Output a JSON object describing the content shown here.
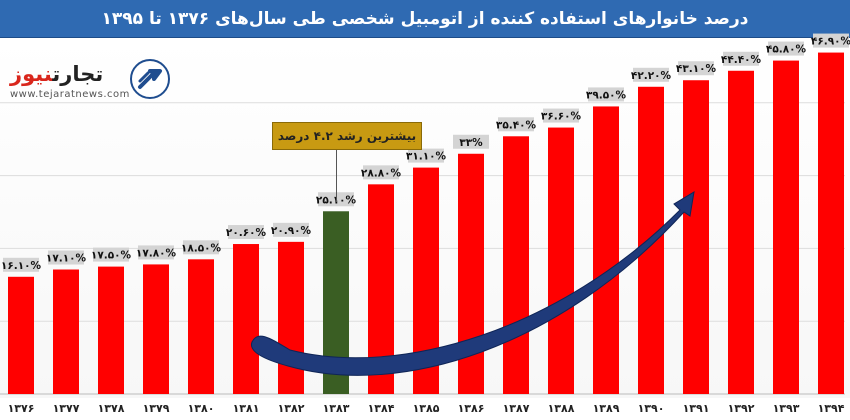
{
  "header": {
    "title": "درصد خانوارهای استفاده کننده از اتومبیل شخصی طی سال‌های ۱۳۷۶ تا ۱۳۹۵"
  },
  "logo": {
    "name_part1": "تجارت",
    "name_part2": "نیوز",
    "site": "www.tejaratnews.com",
    "icon": "tejaratnews-logo-icon"
  },
  "annotation": {
    "text": "بیشترین رشد ۴.۲ درصد",
    "category": "۱۳۸۳"
  },
  "colors": {
    "header_bg": "#2f6ab2",
    "bar": "#ff0000",
    "bar_highlight": "#3a5e23",
    "label_bg": "#d4d4d4",
    "arrow": "#1f3a7a",
    "annotation_bg": "#c89a12"
  },
  "chart_data": {
    "type": "bar",
    "title": "درصد خانوارهای استفاده کننده از اتومبیل شخصی طی سال‌های ۱۳۷۶ تا ۱۳۹۵",
    "categories": [
      "۱۳۷۶",
      "۱۳۷۷",
      "۱۳۷۸",
      "۱۳۷۹",
      "۱۳۸۰",
      "۱۳۸۱",
      "۱۳۸۲",
      "۱۳۸۳",
      "۱۳۸۴",
      "۱۳۸۵",
      "۱۳۸۶",
      "۱۳۸۷",
      "۱۳۸۸",
      "۱۳۸۹",
      "۱۳۹۰",
      "۱۳۹۱",
      "۱۳۹۲",
      "۱۳۹۳",
      "۱۳۹۴"
    ],
    "values": [
      16.1,
      17.1,
      17.5,
      17.8,
      18.5,
      20.6,
      20.9,
      25.1,
      28.8,
      31.1,
      33,
      35.4,
      36.6,
      39.5,
      42.2,
      43.1,
      44.4,
      45.8,
      46.9
    ],
    "value_labels": [
      "۱۶.۱۰%",
      "۱۷.۱۰%",
      "۱۷.۵۰%",
      "۱۷.۸۰%",
      "۱۸.۵۰%",
      "۲۰.۶۰%",
      "۲۰.۹۰%",
      "۲۵.۱۰%",
      "۲۸.۸۰%",
      "۳۱.۱۰%",
      "۳۳%",
      "۳۵.۴۰%",
      "۳۶.۶۰%",
      "۳۹.۵۰%",
      "۴۲.۲۰%",
      "۴۳.۱۰%",
      "۴۴.۴۰%",
      "۴۵.۸۰%",
      "۴۶.۹۰%"
    ],
    "highlight_index": 7,
    "xlabel": "",
    "ylabel": "",
    "ylim": [
      0,
      50
    ],
    "grid": true,
    "legend": "none",
    "trend_arrow": true
  }
}
